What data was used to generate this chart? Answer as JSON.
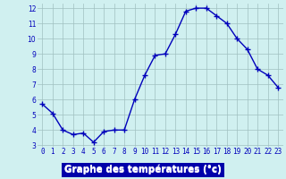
{
  "hours": [
    0,
    1,
    2,
    3,
    4,
    5,
    6,
    7,
    8,
    9,
    10,
    11,
    12,
    13,
    14,
    15,
    16,
    17,
    18,
    19,
    20,
    21,
    22,
    23
  ],
  "temperatures": [
    5.7,
    5.1,
    4.0,
    3.7,
    3.8,
    3.2,
    3.9,
    4.0,
    4.0,
    6.0,
    7.6,
    8.9,
    9.0,
    10.3,
    11.8,
    12.0,
    12.0,
    11.5,
    11.0,
    10.0,
    9.3,
    8.0,
    7.6,
    6.8
  ],
  "xlabel": "Graphe des températures (°c)",
  "ylim_min": 3,
  "ylim_max": 12,
  "xlim_min": 0,
  "xlim_max": 23,
  "yticks": [
    3,
    4,
    5,
    6,
    7,
    8,
    9,
    10,
    11,
    12
  ],
  "xticks": [
    0,
    1,
    2,
    3,
    4,
    5,
    6,
    7,
    8,
    9,
    10,
    11,
    12,
    13,
    14,
    15,
    16,
    17,
    18,
    19,
    20,
    21,
    22,
    23
  ],
  "line_color": "#0000bb",
  "marker": "+",
  "marker_size": 4,
  "marker_lw": 1.0,
  "line_width": 1.0,
  "bg_color": "#d0f0f0",
  "grid_color": "#a0c0c0",
  "tick_label_color": "#0000bb",
  "xlabel_text_color": "#ffffff",
  "xlabel_bg_color": "#0000aa",
  "tick_fontsize": 5.5,
  "xlabel_fontsize": 7.5
}
